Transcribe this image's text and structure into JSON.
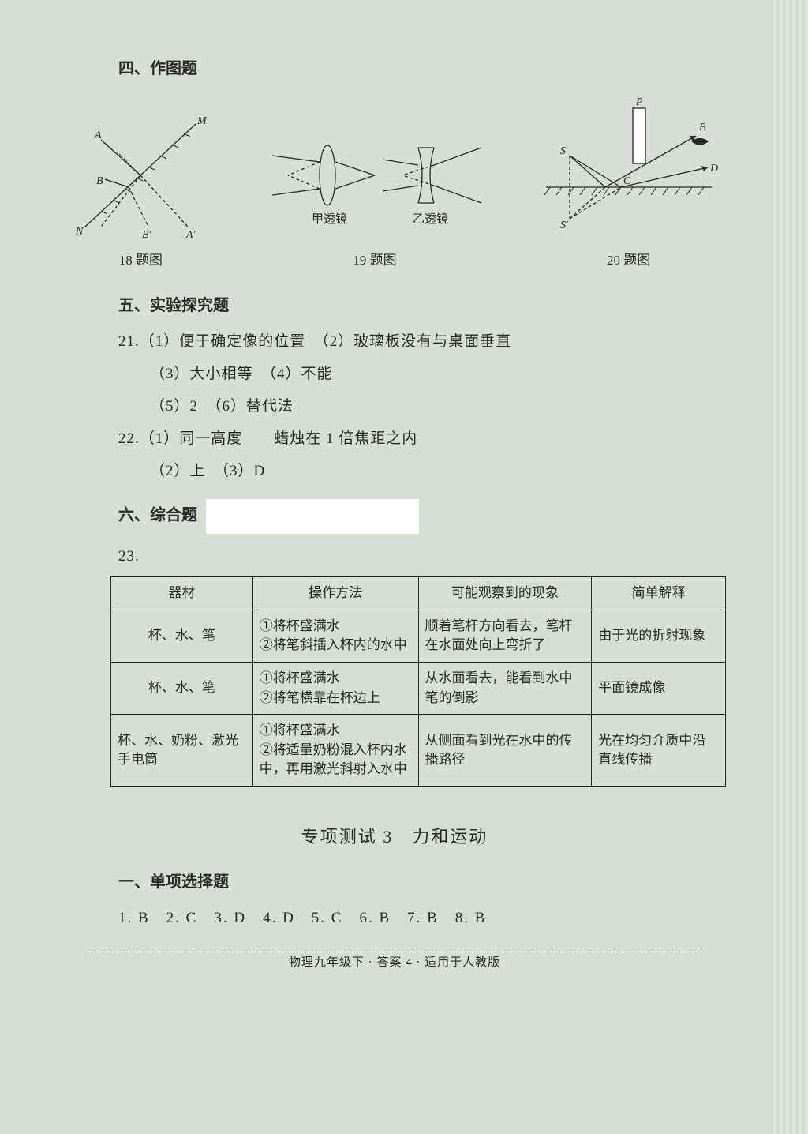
{
  "section4_title": "四、作图题",
  "fig18": {
    "caption": "18 题图",
    "labels": {
      "A": "A",
      "B": "B",
      "M": "M",
      "N": "N",
      "Bp": "B′",
      "Ap": "A′"
    },
    "stroke": "#2a2a2a"
  },
  "fig19": {
    "caption": "19 题图",
    "left_label": "甲透镜",
    "right_label": "乙透镜",
    "stroke": "#2a2a2a"
  },
  "fig20": {
    "caption": "20 题图",
    "labels": {
      "S": "S",
      "Sp": "S′",
      "P": "P",
      "B": "B",
      "C": "C",
      "D": "D"
    },
    "stroke": "#2a2a2a"
  },
  "section5_title": "五、实验探究题",
  "q21": {
    "line1": "21.（1）便于确定像的位置　（2）玻璃板没有与桌面垂直",
    "line2": "（3）大小相等　（4）不能",
    "line3": "（5）2　（6）替代法"
  },
  "q22": {
    "line1": "22.（1）同一高度　　蜡烛在 1 倍焦距之内",
    "line2": "（2）上　（3）D"
  },
  "section6_title": "六、综合题",
  "q23_label": "23.",
  "table": {
    "headers": [
      "器材",
      "操作方法",
      "可能观察到的现象",
      "简单解释"
    ],
    "rows": [
      [
        "杯、水、笔",
        "①将杯盛满水\n②将笔斜插入杯内的水中",
        "顺着笔杆方向看去，笔杆在水面处向上弯折了",
        "由于光的折射现象"
      ],
      [
        "杯、水、笔",
        "①将杯盛满水\n②将笔横靠在杯边上",
        "从水面看去，能看到水中笔的倒影",
        "平面镜成像"
      ],
      [
        "杯、水、奶粉、激光手电筒",
        "①将杯盛满水\n②将适量奶粉混入杯内水中，再用激光斜射入水中",
        "从侧面看到光在水中的传播路径",
        "光在均匀介质中沿直线传播"
      ]
    ],
    "col_widths": [
      "180px",
      "210px",
      "220px",
      "170px"
    ]
  },
  "test3_title": "专项测试 3　力和运动",
  "mcq_title": "一、单项选择题",
  "mcq_answers": "1. B　2. C　3. D　4. D　5. C　6. B　7. B　8. B",
  "footer": "物理九年级下 · 答案 4 · 适用于人教版",
  "colors": {
    "bg": "#d8ddd6",
    "text": "#2a2a2a",
    "border": "#222222"
  }
}
